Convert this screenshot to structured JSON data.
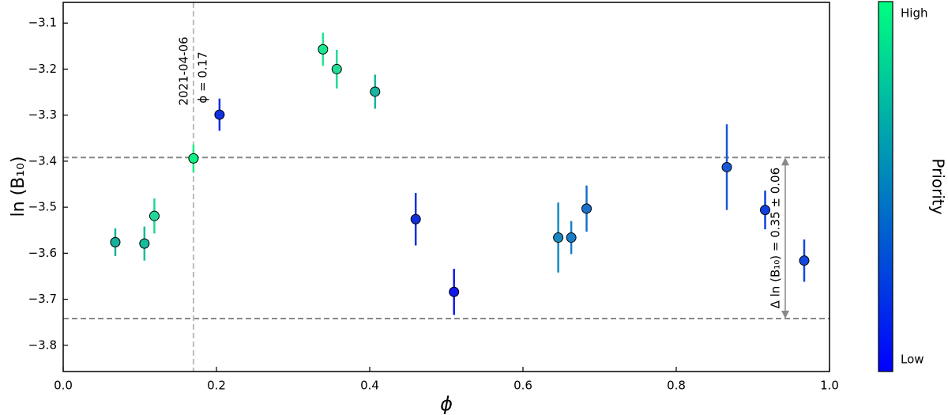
{
  "chart_data": {
    "type": "scatter",
    "xlabel": "ϕ",
    "ylabel": "ln (B₁₀)",
    "xlim": [
      0,
      1
    ],
    "ylim": [
      -3.857,
      -3.055
    ],
    "xticks": [
      {
        "value": 0,
        "label": "0.0"
      },
      0.2,
      0.4,
      0.6,
      0.8,
      {
        "value": 1,
        "label": "1.0"
      }
    ],
    "yticks": [
      {
        "value": -3.8,
        "label": "−3.8"
      },
      {
        "value": -3.7,
        "label": "−3.7"
      },
      {
        "value": -3.6,
        "label": "−3.6"
      },
      {
        "value": -3.5,
        "label": "−3.5"
      },
      {
        "value": -3.4,
        "label": "−3.4"
      },
      {
        "value": -3.3,
        "label": "−3.3"
      },
      {
        "value": -3.2,
        "label": "−3.2"
      },
      {
        "value": -3.1,
        "label": "−3.1"
      }
    ],
    "series": [
      {
        "x": [
          0.068,
          0.106,
          0.119,
          0.17,
          0.204,
          0.339,
          0.357,
          0.407,
          0.46,
          0.51,
          0.646,
          0.663,
          0.683,
          0.866,
          0.916,
          0.967
        ],
        "values": [
          -3.576,
          -3.579,
          -3.519,
          -3.394,
          -3.299,
          -3.157,
          -3.2,
          -3.249,
          -3.526,
          -3.684,
          -3.566,
          -3.566,
          -3.503,
          -3.413,
          -3.506,
          -3.616
        ],
        "errors": [
          0.03,
          0.037,
          0.038,
          0.03,
          0.035,
          0.036,
          0.042,
          0.037,
          0.057,
          0.05,
          0.076,
          0.036,
          0.05,
          0.093,
          0.042,
          0.046
        ],
        "colors": [
          "#14b09c",
          "#18bc9c",
          "#20d898",
          "#10f284",
          "#1030e4",
          "#1ae890",
          "#20dc94",
          "#18b4a0",
          "#1430dc",
          "#1018ec",
          "#1888c0",
          "#187cc8",
          "#1a70cc",
          "#1858d4",
          "#1040e0",
          "#1448dc"
        ]
      }
    ],
    "hlines": [
      -3.392,
      -3.742
    ],
    "vline": 0.17,
    "vline_annotation": [
      "2021-04-06",
      "ϕ = 0.17"
    ],
    "range_annotation": "Δ ln (B₁₀) = 0.35 ± 0.06",
    "colorbar": {
      "label": "Priority",
      "high": "High",
      "low": "Low",
      "colormap": [
        "#0000ff",
        "#00ff80"
      ]
    }
  }
}
